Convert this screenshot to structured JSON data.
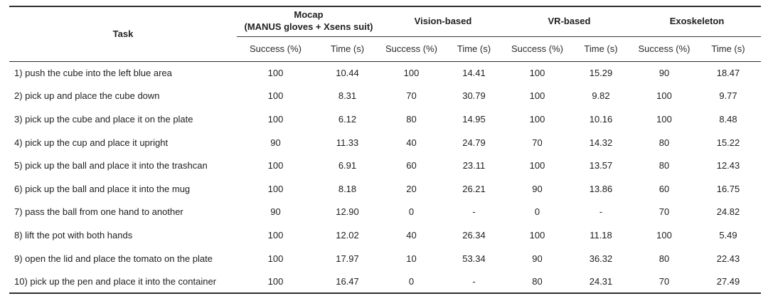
{
  "page": {
    "background": "#ffffff",
    "text_color": "#212121",
    "rule_color": "#2e2e2e"
  },
  "table": {
    "task_header": "Task",
    "groups": [
      {
        "label": "Mocap",
        "sublabel": "(MANUS gloves + Xsens suit)"
      },
      {
        "label": "Vision-based",
        "sublabel": ""
      },
      {
        "label": "VR-based",
        "sublabel": ""
      },
      {
        "label": "Exoskeleton",
        "sublabel": ""
      }
    ],
    "subheaders": [
      "Success (%)",
      "Time (s)"
    ],
    "rows": [
      {
        "task": "1) push the cube into the left blue area",
        "values": [
          "100",
          "10.44",
          "100",
          "14.41",
          "100",
          "15.29",
          "90",
          "18.47"
        ]
      },
      {
        "task": "2) pick up and place the cube down",
        "values": [
          "100",
          "8.31",
          "70",
          "30.79",
          "100",
          "9.82",
          "100",
          "9.77"
        ]
      },
      {
        "task": "3) pick up the cube and place it on the plate",
        "values": [
          "100",
          "6.12",
          "80",
          "14.95",
          "100",
          "10.16",
          "100",
          "8.48"
        ]
      },
      {
        "task": "4) pick up the cup and place it upright",
        "values": [
          "90",
          "11.33",
          "40",
          "24.79",
          "70",
          "14.32",
          "80",
          "15.22"
        ]
      },
      {
        "task": "5) pick up the ball and place it into the trashcan",
        "values": [
          "100",
          "6.91",
          "60",
          "23.11",
          "100",
          "13.57",
          "80",
          "12.43"
        ]
      },
      {
        "task": "6) pick up the ball and place it into the mug",
        "values": [
          "100",
          "8.18",
          "20",
          "26.21",
          "90",
          "13.86",
          "60",
          "16.75"
        ]
      },
      {
        "task": "7) pass the ball from one hand to another",
        "values": [
          "90",
          "12.90",
          "0",
          "-",
          "0",
          "-",
          "70",
          "24.82"
        ]
      },
      {
        "task": "8) lift the pot with both hands",
        "values": [
          "100",
          "12.02",
          "40",
          "26.34",
          "100",
          "11.18",
          "100",
          "5.49"
        ]
      },
      {
        "task": "9) open the lid and place the tomato on the plate",
        "values": [
          "100",
          "17.97",
          "10",
          "53.34",
          "90",
          "36.32",
          "80",
          "22.43"
        ]
      },
      {
        "task": "10) pick up the pen and place it into the container",
        "values": [
          "100",
          "16.47",
          "0",
          "-",
          "80",
          "24.31",
          "70",
          "27.49"
        ]
      }
    ]
  },
  "chart_data": {
    "type": "table",
    "columns": [
      "Task",
      "Mocap (MANUS gloves + Xsens suit) Success (%)",
      "Mocap (MANUS gloves + Xsens suit) Time (s)",
      "Vision-based Success (%)",
      "Vision-based Time (s)",
      "VR-based Success (%)",
      "VR-based Time (s)",
      "Exoskeleton Success (%)",
      "Exoskeleton Time (s)"
    ],
    "rows": [
      [
        "1) push the cube into the left blue area",
        100,
        10.44,
        100,
        14.41,
        100,
        15.29,
        90,
        18.47
      ],
      [
        "2) pick up and place the cube down",
        100,
        8.31,
        70,
        30.79,
        100,
        9.82,
        100,
        9.77
      ],
      [
        "3) pick up the cube and place it on the plate",
        100,
        6.12,
        80,
        14.95,
        100,
        10.16,
        100,
        8.48
      ],
      [
        "4) pick up the cup and place it upright",
        90,
        11.33,
        40,
        24.79,
        70,
        14.32,
        80,
        15.22
      ],
      [
        "5) pick up the ball and place it into the trashcan",
        100,
        6.91,
        60,
        23.11,
        100,
        13.57,
        80,
        12.43
      ],
      [
        "6) pick up the ball and place it into the mug",
        100,
        8.18,
        20,
        26.21,
        90,
        13.86,
        60,
        16.75
      ],
      [
        "7) pass the ball from one hand to another",
        90,
        12.9,
        0,
        "-",
        0,
        "-",
        70,
        24.82
      ],
      [
        "8) lift the pot with both hands",
        100,
        12.02,
        40,
        26.34,
        100,
        11.18,
        100,
        5.49
      ],
      [
        "9) open the lid and place the tomato on the plate",
        100,
        17.97,
        10,
        53.34,
        90,
        36.32,
        80,
        22.43
      ],
      [
        "10) pick up the pen and place it into the container",
        100,
        16.47,
        0,
        "-",
        80,
        24.31,
        70,
        27.49
      ]
    ]
  }
}
